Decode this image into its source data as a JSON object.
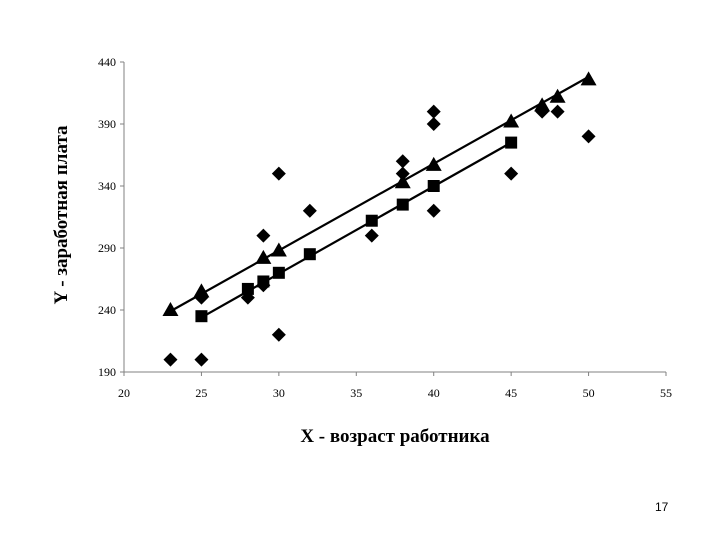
{
  "chart_data": {
    "type": "scatter",
    "xlabel": "X - возраст работника",
    "ylabel": "Y - заработная плата",
    "xlim": [
      20,
      55
    ],
    "ylim": [
      190,
      440
    ],
    "x_ticks": [
      "20",
      "25",
      "30",
      "35",
      "40",
      "45",
      "50",
      "55"
    ],
    "y_ticks": [
      "190",
      "240",
      "290",
      "340",
      "390",
      "440"
    ],
    "grid": false,
    "legend": "none",
    "series": [
      {
        "marker": "diamond",
        "points": [
          [
            23,
            200
          ],
          [
            25,
            200
          ],
          [
            25,
            250
          ],
          [
            28,
            250
          ],
          [
            29,
            260
          ],
          [
            29,
            300
          ],
          [
            30,
            220
          ],
          [
            30,
            350
          ],
          [
            32,
            320
          ],
          [
            36,
            300
          ],
          [
            38,
            350
          ],
          [
            38,
            360
          ],
          [
            40,
            320
          ],
          [
            40,
            390
          ],
          [
            40,
            400
          ],
          [
            45,
            350
          ],
          [
            47,
            400
          ],
          [
            48,
            400
          ],
          [
            50,
            380
          ]
        ]
      },
      {
        "marker": "square",
        "points": [
          [
            25,
            235
          ],
          [
            28,
            257
          ],
          [
            29,
            263
          ],
          [
            30,
            270
          ],
          [
            32,
            285
          ],
          [
            36,
            312
          ],
          [
            38,
            325
          ],
          [
            40,
            340
          ],
          [
            45,
            375
          ]
        ]
      },
      {
        "marker": "triangle",
        "points": [
          [
            23,
            240
          ],
          [
            25,
            255
          ],
          [
            29,
            282
          ],
          [
            30,
            288
          ],
          [
            38,
            343
          ],
          [
            40,
            357
          ],
          [
            45,
            392
          ],
          [
            47,
            405
          ],
          [
            48,
            412
          ],
          [
            50,
            426
          ]
        ]
      }
    ],
    "lines": [
      {
        "from": [
          23,
          239
        ],
        "to": [
          50,
          428
        ]
      },
      {
        "from": [
          25,
          234
        ],
        "to": [
          45,
          375
        ]
      }
    ],
    "colors": {
      "marks": "#000000",
      "axis": "#808080"
    }
  },
  "page_number": "17"
}
